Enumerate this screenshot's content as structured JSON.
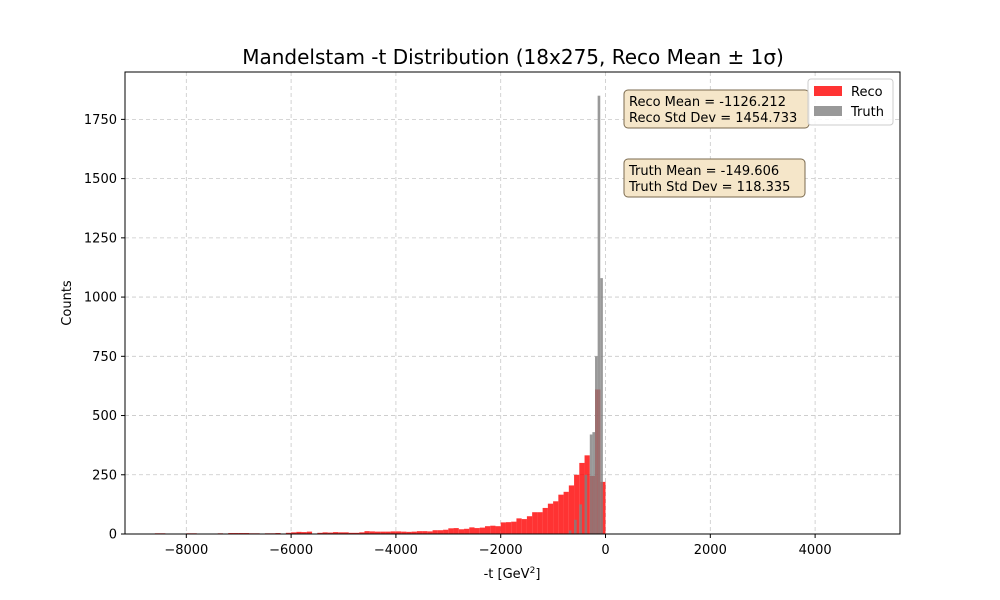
{
  "chart_data": {
    "type": "bar",
    "title": "Mandelstam -t Distribution (18x275, Reco Mean ± 1σ)",
    "xlabel": "-t [GeV²]",
    "ylabel": "Counts",
    "xlim": [
      -9170,
      5620
    ],
    "ylim": [
      0,
      1950
    ],
    "xticks": [
      -8000,
      -6000,
      -4000,
      -2000,
      0,
      2000,
      4000
    ],
    "xtick_labels": [
      "−8000",
      "−6000",
      "−4000",
      "−2000",
      "0",
      "2000",
      "4000"
    ],
    "yticks": [
      0,
      250,
      500,
      750,
      1000,
      1250,
      1500,
      1750
    ],
    "ytick_labels": [
      "0",
      "250",
      "500",
      "750",
      "1000",
      "1250",
      "1500",
      "1750"
    ],
    "grid": true,
    "legend_position": "upper right",
    "bin_width": 100,
    "series": [
      {
        "name": "Reco",
        "color": "#ff0000",
        "alpha": 0.8,
        "bins": [
          [
            -8600,
            3
          ],
          [
            -8500,
            3
          ],
          [
            -8200,
            2
          ],
          [
            -8000,
            3
          ],
          [
            -7900,
            3
          ],
          [
            -7700,
            2
          ],
          [
            -7400,
            3
          ],
          [
            -7200,
            4
          ],
          [
            -7100,
            4
          ],
          [
            -7000,
            4
          ],
          [
            -6900,
            4
          ],
          [
            -6800,
            3
          ],
          [
            -6700,
            3
          ],
          [
            -6500,
            3
          ],
          [
            -6400,
            3
          ],
          [
            -6300,
            4
          ],
          [
            -6100,
            5
          ],
          [
            -6000,
            7
          ],
          [
            -5900,
            9
          ],
          [
            -5800,
            8
          ],
          [
            -5700,
            10
          ],
          [
            -5500,
            5
          ],
          [
            -5400,
            7
          ],
          [
            -5300,
            6
          ],
          [
            -5200,
            8
          ],
          [
            -5100,
            7
          ],
          [
            -5000,
            7
          ],
          [
            -4900,
            5
          ],
          [
            -4800,
            5
          ],
          [
            -4700,
            7
          ],
          [
            -4600,
            12
          ],
          [
            -4500,
            11
          ],
          [
            -4400,
            10
          ],
          [
            -4300,
            10
          ],
          [
            -4200,
            10
          ],
          [
            -4100,
            11
          ],
          [
            -4000,
            11
          ],
          [
            -3900,
            10
          ],
          [
            -3800,
            9
          ],
          [
            -3700,
            10
          ],
          [
            -3600,
            12
          ],
          [
            -3500,
            12
          ],
          [
            -3400,
            11
          ],
          [
            -3300,
            16
          ],
          [
            -3200,
            16
          ],
          [
            -3100,
            18
          ],
          [
            -3000,
            24
          ],
          [
            -2900,
            25
          ],
          [
            -2800,
            20
          ],
          [
            -2700,
            22
          ],
          [
            -2600,
            28
          ],
          [
            -2500,
            25
          ],
          [
            -2400,
            27
          ],
          [
            -2300,
            33
          ],
          [
            -2200,
            35
          ],
          [
            -2100,
            33
          ],
          [
            -2000,
            49
          ],
          [
            -1900,
            50
          ],
          [
            -1800,
            52
          ],
          [
            -1700,
            66
          ],
          [
            -1600,
            63
          ],
          [
            -1500,
            75
          ],
          [
            -1400,
            92
          ],
          [
            -1300,
            92
          ],
          [
            -1200,
            110
          ],
          [
            -1100,
            128
          ],
          [
            -1000,
            138
          ],
          [
            -900,
            166
          ],
          [
            -800,
            178
          ],
          [
            -700,
            205
          ],
          [
            -600,
            250
          ],
          [
            -500,
            300
          ],
          [
            -400,
            332
          ],
          [
            -300,
            245
          ],
          [
            -200,
            610
          ],
          [
            -100,
            220
          ]
        ]
      },
      {
        "name": "Truth",
        "color": "#808080",
        "alpha": 0.8,
        "bins": [
          [
            -700,
            15
          ],
          [
            -600,
            60
          ],
          [
            -500,
            125
          ],
          [
            -400,
            250
          ],
          [
            -300,
            420
          ],
          [
            -250,
            430
          ],
          [
            -200,
            750
          ],
          [
            -150,
            1850
          ],
          [
            -100,
            1080
          ],
          [
            -50,
            0
          ]
        ]
      }
    ],
    "annotations": [
      {
        "name": "reco-stats",
        "lines": [
          "Reco Mean = -1126.212",
          "Reco Std Dev = 1454.733"
        ],
        "facecolor": "#f5e6c9",
        "edgecolor": "#7a6a4f"
      },
      {
        "name": "truth-stats",
        "lines": [
          "Truth Mean = -149.606",
          "Truth Std Dev = 118.335"
        ],
        "facecolor": "#f5e6c9",
        "edgecolor": "#7a6a4f"
      }
    ]
  }
}
